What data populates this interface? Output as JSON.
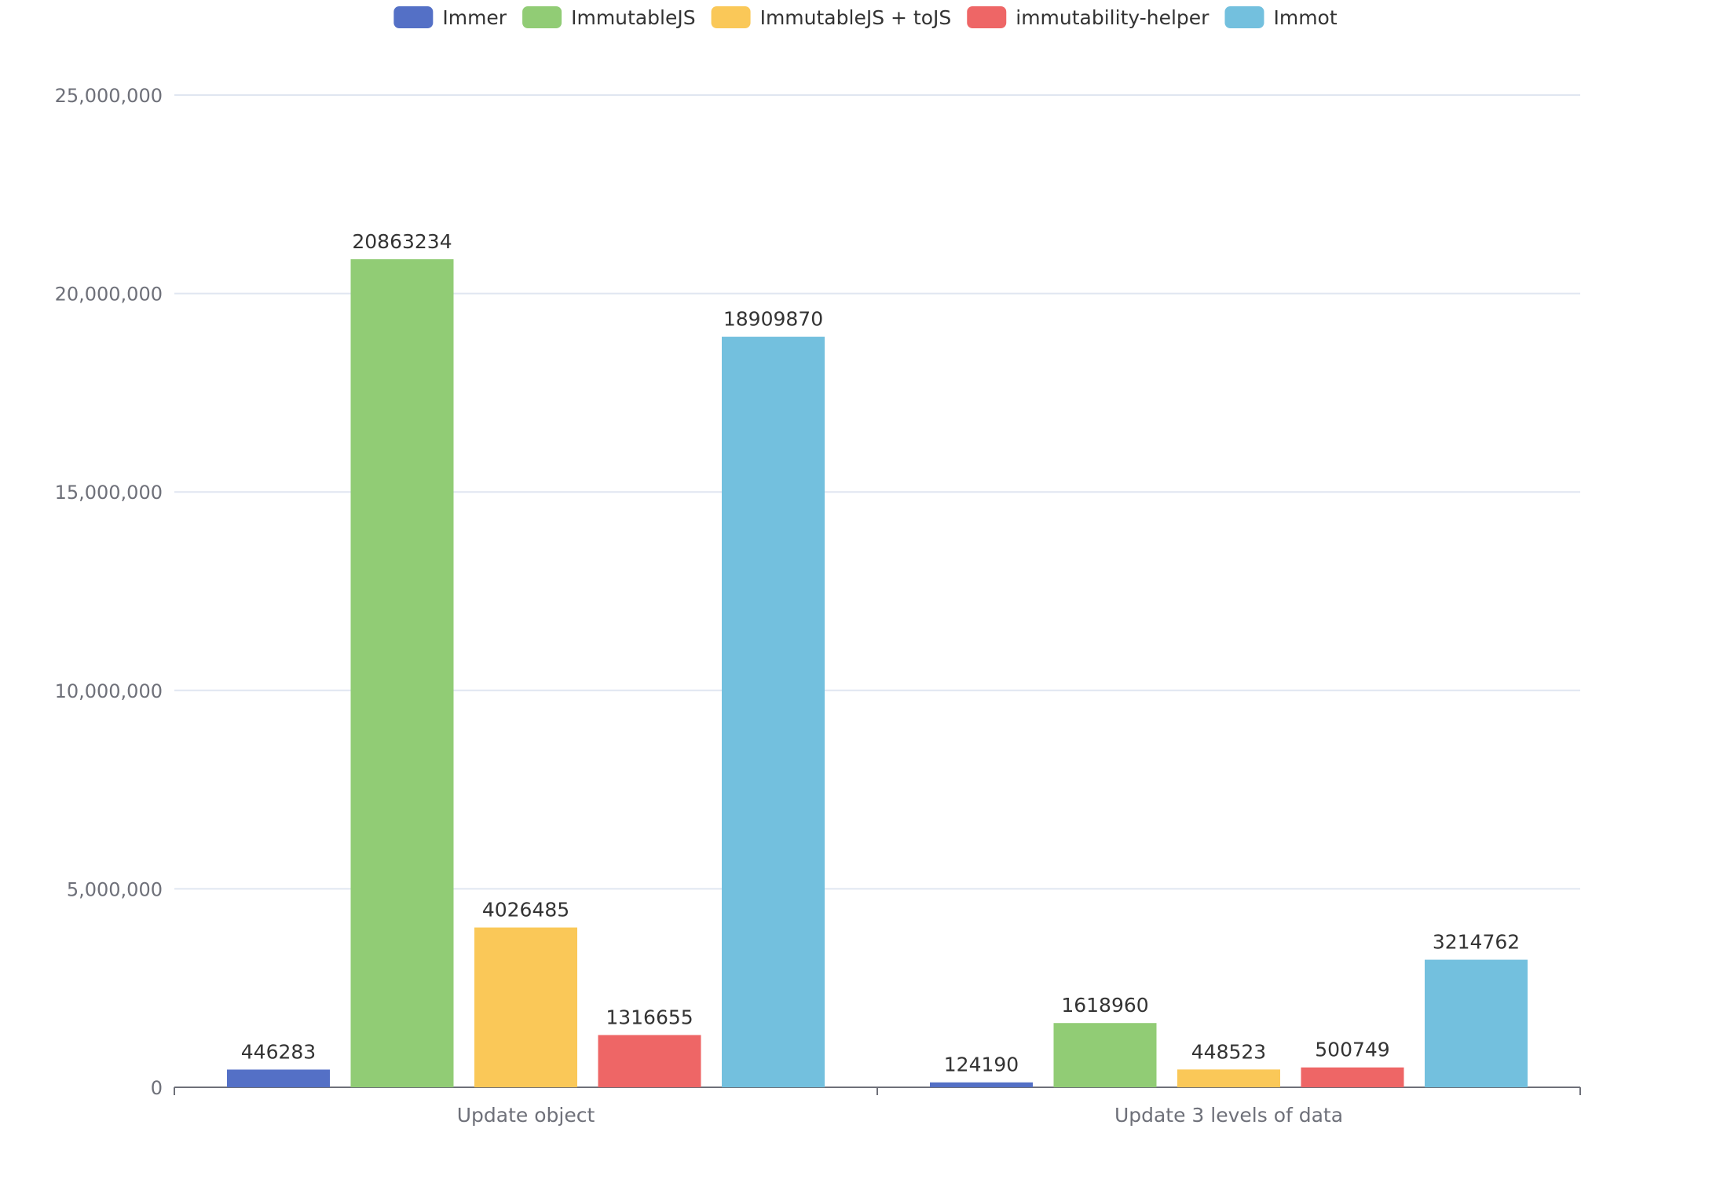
{
  "chart_data": {
    "type": "bar",
    "title": "",
    "xlabel": "",
    "ylabel": "",
    "categories": [
      "Update object",
      "Update 3 levels of data"
    ],
    "ylim": [
      0,
      25000000
    ],
    "yticks": [
      0,
      5000000,
      10000000,
      15000000,
      20000000,
      25000000
    ],
    "ytick_labels": [
      "0",
      "5,000,000",
      "10,000,000",
      "15,000,000",
      "20,000,000",
      "25,000,000"
    ],
    "grid": true,
    "legend_position": "top-center",
    "series": [
      {
        "name": "Immer",
        "color": "#5470c6",
        "values": [
          446283,
          124190
        ],
        "labels": [
          "446283",
          "124190"
        ]
      },
      {
        "name": "ImmutableJS",
        "color": "#91cc75",
        "values": [
          20863234,
          1618960
        ],
        "labels": [
          "20863234",
          "1618960"
        ]
      },
      {
        "name": "ImmutableJS + toJS",
        "color": "#fac858",
        "values": [
          4026485,
          448523
        ],
        "labels": [
          "4026485",
          "448523"
        ]
      },
      {
        "name": "immutability-helper",
        "color": "#ee6666",
        "values": [
          1316655,
          500749
        ],
        "labels": [
          "1316655",
          "500749"
        ]
      },
      {
        "name": "Immot",
        "color": "#73c0de",
        "values": [
          18909870,
          3214762
        ],
        "labels": [
          "18909870",
          "3214762"
        ]
      }
    ]
  }
}
